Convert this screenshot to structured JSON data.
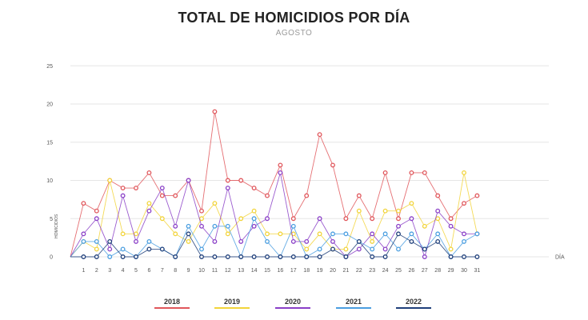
{
  "chart_data": {
    "type": "line",
    "title": "TOTAL DE HOMICIDIOS POR DÍA",
    "subtitle": "AGOSTO",
    "xlabel": "DÍA",
    "ylabel": "HOMICIDIOS",
    "ylim": [
      0,
      25
    ],
    "yticks": [
      0,
      5,
      10,
      15,
      20,
      25
    ],
    "grid": true,
    "legend_position": "bottom",
    "x": [
      0,
      1,
      2,
      3,
      4,
      5,
      6,
      7,
      8,
      9,
      10,
      11,
      12,
      13,
      14,
      15,
      16,
      17,
      18,
      19,
      20,
      21,
      22,
      23,
      24,
      25,
      26,
      27,
      28,
      29,
      30,
      31
    ],
    "x_tick_labels": [
      "",
      "1",
      "2",
      "3",
      "4",
      "5",
      "6",
      "7",
      "8",
      "9",
      "10",
      "11",
      "12",
      "13",
      "14",
      "15",
      "16",
      "17",
      "18",
      "19",
      "20",
      "21",
      "22",
      "23",
      "24",
      "25",
      "26",
      "27",
      "28",
      "29",
      "30",
      "31"
    ],
    "series": [
      {
        "name": "2018",
        "color": "#e0565b",
        "values": [
          0,
          7,
          6,
          10,
          9,
          9,
          11,
          8,
          8,
          10,
          6,
          19,
          10,
          10,
          9,
          8,
          12,
          5,
          8,
          16,
          12,
          5,
          8,
          5,
          11,
          5,
          11,
          11,
          8,
          5,
          7,
          8
        ]
      },
      {
        "name": "2019",
        "color": "#f2d43a",
        "values": [
          0,
          2,
          1,
          10,
          3,
          3,
          7,
          5,
          3,
          2,
          5,
          7,
          3,
          5,
          6,
          3,
          3,
          3,
          1,
          3,
          1,
          1,
          6,
          2,
          6,
          6,
          7,
          4,
          5,
          1,
          11,
          3
        ]
      },
      {
        "name": "2020",
        "color": "#8a3fc7",
        "values": [
          0,
          3,
          5,
          1,
          8,
          2,
          6,
          9,
          4,
          10,
          4,
          2,
          9,
          2,
          4,
          5,
          11,
          2,
          2,
          5,
          2,
          0,
          1,
          3,
          1,
          4,
          5,
          0,
          6,
          4,
          3,
          3
        ]
      },
      {
        "name": "2021",
        "color": "#4a9ee0",
        "values": [
          0,
          2,
          2,
          0,
          1,
          0,
          2,
          1,
          0,
          4,
          1,
          4,
          4,
          0,
          5,
          2,
          0,
          4,
          0,
          1,
          3,
          3,
          2,
          1,
          3,
          1,
          3,
          1,
          3,
          0,
          2,
          3
        ]
      },
      {
        "name": "2022",
        "color": "#1f3f7a",
        "values": [
          0,
          0,
          0,
          2,
          0,
          0,
          1,
          1,
          0,
          3,
          0,
          0,
          0,
          0,
          0,
          0,
          0,
          0,
          0,
          0,
          1,
          0,
          2,
          0,
          0,
          3,
          2,
          1,
          2,
          0,
          0,
          0
        ]
      }
    ]
  }
}
